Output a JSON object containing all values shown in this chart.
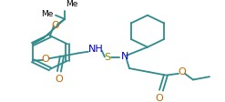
{
  "bg_color": "#ffffff",
  "line_color": "#2e8b8b",
  "figsize": [
    2.47,
    1.12
  ],
  "dpi": 100,
  "xlim": [
    0,
    247
  ],
  "ylim": [
    0,
    112
  ],
  "line_width": 1.3,
  "atom_colors": {
    "O": "#cc6600",
    "N": "#0000cc",
    "S": "#888800"
  }
}
